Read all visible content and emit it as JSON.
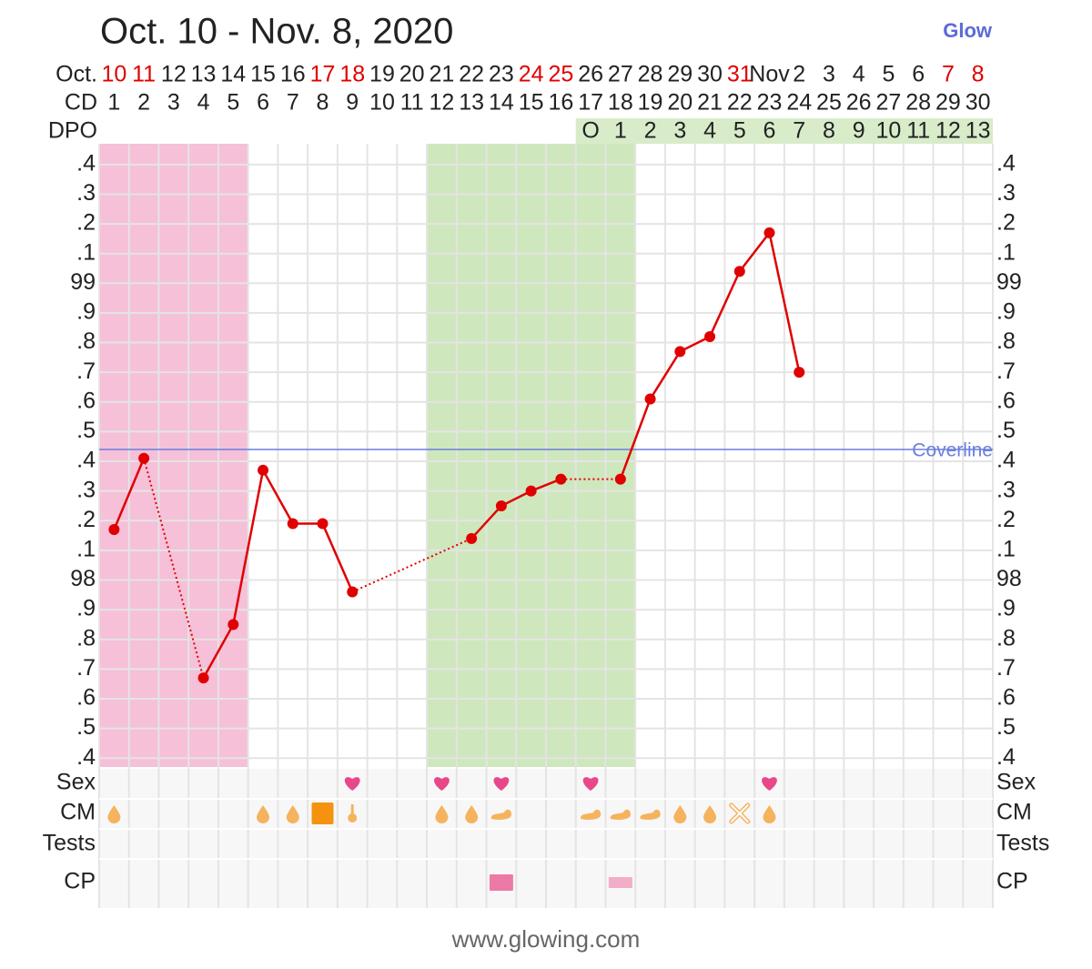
{
  "chart_data": {
    "type": "line",
    "title": "Oct. 10 - Nov. 8, 2020",
    "brand": "Glow",
    "footer": "www.glowing.com",
    "row_labels": {
      "month": "Oct.",
      "cd": "CD",
      "dpo": "DPO",
      "sex": "Sex",
      "cm": "CM",
      "tests": "Tests",
      "cp": "CP"
    },
    "dates": [
      "10",
      "11",
      "12",
      "13",
      "14",
      "15",
      "16",
      "17",
      "18",
      "19",
      "20",
      "21",
      "22",
      "23",
      "24",
      "25",
      "26",
      "27",
      "28",
      "29",
      "30",
      "31",
      "Nov",
      "2",
      "3",
      "4",
      "5",
      "6",
      "7",
      "8"
    ],
    "weekend": [
      0,
      1,
      7,
      8,
      14,
      15,
      21,
      28,
      29
    ],
    "weekend_color": "#e00000",
    "x": [
      1,
      2,
      3,
      4,
      5,
      6,
      7,
      8,
      9,
      10,
      11,
      12,
      13,
      14,
      15,
      16,
      17,
      18,
      19,
      20,
      21,
      22,
      23,
      24,
      25,
      26,
      27,
      28,
      29,
      30
    ],
    "values": [
      98.17,
      98.41,
      null,
      97.67,
      97.85,
      98.37,
      98.19,
      98.19,
      97.96,
      null,
      null,
      null,
      98.14,
      98.25,
      98.3,
      98.34,
      null,
      98.34,
      98.61,
      98.77,
      98.82,
      99.04,
      99.17,
      98.7,
      null,
      null,
      null,
      null,
      null,
      null
    ],
    "color": "#e00000",
    "dpo_start_day": 17,
    "dpo": [
      "O",
      1,
      2,
      3,
      4,
      5,
      6,
      7,
      8,
      9,
      10,
      11,
      12,
      13
    ],
    "xlim": [
      0.5,
      30.5
    ],
    "ylim": [
      97.37,
      99.47
    ],
    "yticks": [
      {
        "value": 99.4,
        "label": ".4"
      },
      {
        "value": 99.3,
        "label": ".3"
      },
      {
        "value": 99.2,
        "label": ".2"
      },
      {
        "value": 99.1,
        "label": ".1"
      },
      99,
      {
        "value": 98.9,
        "label": ".9"
      },
      {
        "value": 98.8,
        "label": ".8"
      },
      {
        "value": 98.7,
        "label": ".7"
      },
      {
        "value": 98.6,
        "label": ".6"
      },
      {
        "value": 98.5,
        "label": ".5"
      },
      {
        "value": 98.4,
        "label": ".4"
      },
      {
        "value": 98.3,
        "label": ".3"
      },
      {
        "value": 98.2,
        "label": ".2"
      },
      {
        "value": 98.1,
        "label": ".1"
      },
      98,
      {
        "value": 97.9,
        "label": ".9"
      },
      {
        "value": 97.8,
        "label": ".8"
      },
      {
        "value": 97.7,
        "label": ".7"
      },
      {
        "value": 97.6,
        "label": ".6"
      },
      {
        "value": 97.5,
        "label": ".5"
      },
      {
        "value": 97.4,
        "label": ".4"
      }
    ],
    "grid": true,
    "coverline": 98.44,
    "coverline_label": "Coverline",
    "coverline_color": "#6b7fe0",
    "period_days": [
      1,
      5
    ],
    "fertile_days": [
      12,
      18
    ],
    "sex_days": [
      9,
      12,
      14,
      17,
      23
    ],
    "cm": [
      {
        "day": 1,
        "kind": "drop"
      },
      {
        "day": 6,
        "kind": "drop"
      },
      {
        "day": 7,
        "kind": "drop"
      },
      {
        "day": 8,
        "kind": "square"
      },
      {
        "day": 9,
        "kind": "stick"
      },
      {
        "day": 12,
        "kind": "drop"
      },
      {
        "day": 13,
        "kind": "drop"
      },
      {
        "day": 14,
        "kind": "creamy"
      },
      {
        "day": 17,
        "kind": "creamy"
      },
      {
        "day": 18,
        "kind": "creamy"
      },
      {
        "day": 19,
        "kind": "creamy"
      },
      {
        "day": 20,
        "kind": "drop"
      },
      {
        "day": 21,
        "kind": "drop"
      },
      {
        "day": 22,
        "kind": "cross"
      },
      {
        "day": 23,
        "kind": "drop"
      }
    ],
    "cp": [
      {
        "day": 14,
        "kind": "high"
      },
      {
        "day": 18,
        "kind": "low"
      }
    ]
  }
}
